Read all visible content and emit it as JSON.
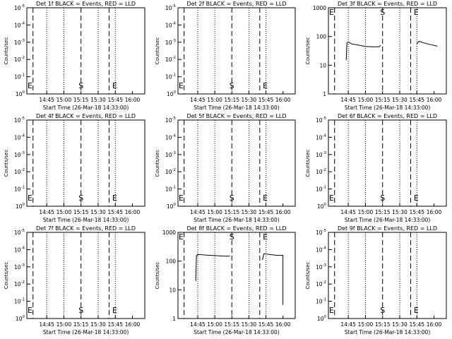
{
  "chart_data": [
    {
      "type": "line",
      "title": "Det 1f BLACK = Events, RED = LLD",
      "xlabel": "Start Time (26-Mar-18 14:33:00)",
      "ylabel": "Counts/sec",
      "x_ticks": [
        "14:45",
        "15:00",
        "15:15",
        "15:30",
        "15:45",
        "16:00"
      ],
      "y_ticks": [
        "10^0",
        "10^-1",
        "10^-2",
        "10^-3",
        "10^-4",
        "10^-5"
      ],
      "y_scale": "log",
      "markers": [
        "S",
        "E"
      ],
      "series": []
    },
    {
      "type": "line",
      "title": "Det 2f BLACK = Events, RED = LLD",
      "xlabel": "Start Time (26-Mar-18 14:33:00)",
      "ylabel": "Counts/sec",
      "x_ticks": [
        "14:45",
        "15:00",
        "15:15",
        "15:30",
        "15:45",
        "16:00"
      ],
      "y_ticks": [
        "10^0",
        "10^-1",
        "10^-2",
        "10^-3",
        "10^-4",
        "10^-5"
      ],
      "y_scale": "log",
      "markers": [
        "S",
        "E"
      ],
      "series": []
    },
    {
      "type": "line",
      "title": "Det 3f BLACK = Events, RED = LLD",
      "xlabel": "Start Time (26-Mar-18 14:33:00)",
      "ylabel": "Counts/sec",
      "x_ticks": [
        "14:45",
        "15:00",
        "15:15",
        "15:30",
        "15:45",
        "16:00"
      ],
      "y_ticks": [
        "1",
        "10",
        "100",
        "1000"
      ],
      "y_scale": "log",
      "markers": [
        "S",
        "E"
      ],
      "series": [
        {
          "segments": [
            [
              [
                14.72,
                15
              ],
              [
                14.73,
                60
              ],
              [
                14.75,
                65
              ],
              [
                14.8,
                55
              ],
              [
                14.9,
                50
              ],
              [
                15.0,
                45
              ],
              [
                15.1,
                44
              ],
              [
                15.2,
                44
              ],
              [
                15.22,
                50
              ]
            ],
            [
              [
                15.75,
                55
              ],
              [
                15.78,
                68
              ],
              [
                15.85,
                60
              ],
              [
                15.95,
                52
              ],
              [
                16.05,
                46
              ]
            ]
          ]
        }
      ]
    },
    {
      "type": "line",
      "title": "Det 4f BLACK = Events, RED = LLD",
      "xlabel": "Start Time (26-Mar-18 14:33:00)",
      "ylabel": "Counts/sec",
      "x_ticks": [
        "14:45",
        "15:00",
        "15:15",
        "15:30",
        "15:45",
        "16:00"
      ],
      "y_ticks": [
        "10^0",
        "10^-1",
        "10^-2",
        "10^-3",
        "10^-4",
        "10^-5"
      ],
      "y_scale": "log",
      "markers": [
        "S",
        "E"
      ],
      "series": []
    },
    {
      "type": "line",
      "title": "Det 5f BLACK = Events, RED = LLD",
      "xlabel": "Start Time (26-Mar-18 14:33:00)",
      "ylabel": "Counts/sec",
      "x_ticks": [
        "14:45",
        "15:00",
        "15:15",
        "15:30",
        "15:45",
        "16:00"
      ],
      "y_ticks": [
        "10^0",
        "10^-1",
        "10^-2",
        "10^-3",
        "10^-4",
        "10^-5"
      ],
      "y_scale": "log",
      "markers": [
        "S",
        "E"
      ],
      "series": []
    },
    {
      "type": "line",
      "title": "Det 6f BLACK = Events, RED = LLD",
      "xlabel": "Start Time (26-Mar-18 14:33:00)",
      "ylabel": "Counts/sec",
      "x_ticks": [
        "14:45",
        "15:00",
        "15:15",
        "15:30",
        "15:45",
        "16:00"
      ],
      "y_ticks": [
        "10^0",
        "10^-1",
        "10^-2",
        "10^-3",
        "10^-4",
        "10^-5"
      ],
      "y_scale": "log",
      "markers": [
        "S",
        "E"
      ],
      "series": []
    },
    {
      "type": "line",
      "title": "Det 7f BLACK = Events, RED = LLD",
      "xlabel": "Start Time (26-Mar-18 14:33:00)",
      "ylabel": "Counts/sec",
      "x_ticks": [
        "14:45",
        "15:00",
        "15:15",
        "15:30",
        "15:45",
        "16:00"
      ],
      "y_ticks": [
        "10^0",
        "10^-1",
        "10^-2",
        "10^-3",
        "10^-4",
        "10^-5"
      ],
      "y_scale": "log",
      "markers": [
        "S",
        "E"
      ],
      "series": []
    },
    {
      "type": "line",
      "title": "Det 8f BLACK = Events, RED = LLD",
      "xlabel": "Start Time (26-Mar-18 14:33:00)",
      "ylabel": "Counts/sec",
      "x_ticks": [
        "14:45",
        "15:00",
        "15:15",
        "15:30",
        "15:45",
        "16:00"
      ],
      "y_ticks": [
        "1",
        "10",
        "100",
        "1000"
      ],
      "y_scale": "log",
      "markers": [
        "S",
        "E"
      ],
      "series": [
        {
          "segments": [
            [
              [
                14.72,
                20
              ],
              [
                14.73,
                150
              ],
              [
                14.75,
                170
              ],
              [
                14.9,
                160
              ],
              [
                15.0,
                155
              ],
              [
                15.1,
                150
              ],
              [
                15.2,
                148
              ],
              [
                15.22,
                150
              ]
            ],
            [
              [
                15.7,
                110
              ],
              [
                15.72,
                180
              ],
              [
                15.8,
                170
              ],
              [
                15.9,
                160
              ],
              [
                15.98,
                158
              ],
              [
                16.0,
                158
              ],
              [
                16.0,
                3
              ]
            ]
          ]
        }
      ]
    },
    {
      "type": "line",
      "title": "Det 9f BLACK = Events, RED = LLD",
      "xlabel": "Start Time (26-Mar-18 14:33:00)",
      "ylabel": "Counts/sec",
      "x_ticks": [
        "14:45",
        "15:00",
        "15:15",
        "15:30",
        "15:45",
        "16:00"
      ],
      "y_ticks": [
        "10^0",
        "10^-1",
        "10^-2",
        "10^-3",
        "10^-4",
        "10^-5"
      ],
      "y_scale": "log",
      "markers": [
        "S",
        "E"
      ],
      "series": []
    }
  ]
}
